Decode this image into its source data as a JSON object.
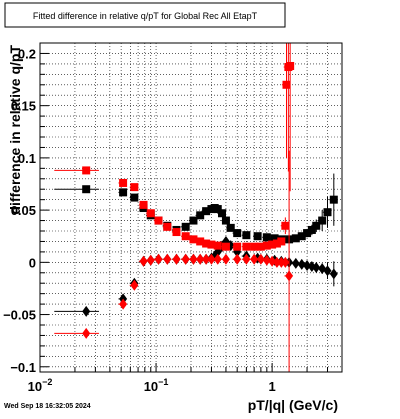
{
  "canvas": {
    "title": "Fitted difference in relative q/pT for Global Rec All EtapT",
    "footer": "Wed Sep 18 16:32:05 2024"
  },
  "chart_data": {
    "type": "scatter",
    "title": "Fitted difference in relative q/pT for Global Rec All EtapT",
    "xlabel": "pT/|q| (GeV/c)",
    "ylabel": "difference in relative q/pT",
    "xscale": "log",
    "xlim": [
      0.01,
      4.0
    ],
    "ylim": [
      -0.105,
      0.21
    ],
    "grid": true,
    "x_ticks": [
      {
        "value": 0.01,
        "base": "10",
        "exp": "−2"
      },
      {
        "value": 0.1,
        "base": "10",
        "exp": "−1"
      },
      {
        "value": 1,
        "base": "1",
        "exp": ""
      }
    ],
    "y_ticks": [
      {
        "value": -0.1,
        "label": "−0.1"
      },
      {
        "value": -0.05,
        "label": "−0.05"
      },
      {
        "value": 0,
        "label": "0"
      },
      {
        "value": 0.05,
        "label": "0.05"
      },
      {
        "value": 0.1,
        "label": "0.1"
      },
      {
        "value": 0.15,
        "label": "0.15"
      },
      {
        "value": 0.2,
        "label": "0.2"
      }
    ],
    "series": [
      {
        "color": "#000000",
        "marker": "square",
        "x": [
          0.025,
          0.052,
          0.065,
          0.078,
          0.09,
          0.105,
          0.125,
          0.15,
          0.18,
          0.21,
          0.24,
          0.27,
          0.3,
          0.32,
          0.34,
          0.37,
          0.4,
          0.44,
          0.5,
          0.6,
          0.75,
          0.9,
          1.05,
          1.2,
          1.4,
          1.6,
          1.8,
          2.0,
          2.2,
          2.4,
          2.7,
          3.0,
          3.4
        ],
        "y": [
          0.07,
          0.067,
          0.062,
          0.052,
          0.045,
          0.04,
          0.035,
          0.031,
          0.034,
          0.04,
          0.045,
          0.049,
          0.051,
          0.052,
          0.051,
          0.047,
          0.04,
          0.033,
          0.028,
          0.026,
          0.025,
          0.024,
          0.023,
          0.022,
          0.022,
          0.023,
          0.025,
          0.028,
          0.031,
          0.035,
          0.04,
          0.048,
          0.06
        ],
        "yerr": [
          0.003,
          0.003,
          0.002,
          0.002,
          0.002,
          0.001,
          0.001,
          0.001,
          0.001,
          0.001,
          0.001,
          0.001,
          0.001,
          0.001,
          0.001,
          0.001,
          0.001,
          0.001,
          0.001,
          0.001,
          0.001,
          0.001,
          0.001,
          0.001,
          0.002,
          0.002,
          0.003,
          0.004,
          0.005,
          0.006,
          0.01,
          0.015,
          0.025
        ]
      },
      {
        "color": "#000000",
        "marker": "diamond",
        "x": [
          0.025,
          0.052,
          0.065,
          0.078,
          0.09,
          0.105,
          0.125,
          0.15,
          0.18,
          0.21,
          0.24,
          0.27,
          0.3,
          0.32,
          0.34,
          0.37,
          0.4,
          0.44,
          0.5,
          0.6,
          0.75,
          0.9,
          1.05,
          1.2,
          1.4,
          1.6,
          1.8,
          2.0,
          2.2,
          2.4,
          2.7,
          3.0,
          3.4
        ],
        "y": [
          -0.047,
          -0.035,
          -0.02,
          0.001,
          0.002,
          0.003,
          0.003,
          0.003,
          0.003,
          0.003,
          0.003,
          0.003,
          0.004,
          0.006,
          0.01,
          0.015,
          0.02,
          0.016,
          0.01,
          0.006,
          0.004,
          0.003,
          0.002,
          0.001,
          0.0,
          -0.001,
          -0.002,
          -0.003,
          -0.004,
          -0.005,
          -0.006,
          -0.008,
          -0.011
        ],
        "yerr": [
          0.002,
          0.002,
          0.002,
          0.001,
          0.001,
          0.001,
          0.001,
          0.001,
          0.001,
          0.001,
          0.001,
          0.001,
          0.001,
          0.001,
          0.001,
          0.001,
          0.001,
          0.001,
          0.001,
          0.001,
          0.001,
          0.001,
          0.001,
          0.001,
          0.001,
          0.001,
          0.001,
          0.002,
          0.002,
          0.003,
          0.005,
          0.008,
          0.012
        ]
      },
      {
        "color": "#ff0000",
        "marker": "square",
        "x": [
          0.025,
          0.052,
          0.065,
          0.078,
          0.09,
          0.105,
          0.125,
          0.15,
          0.18,
          0.21,
          0.24,
          0.27,
          0.3,
          0.34,
          0.4,
          0.5,
          0.6,
          0.7,
          0.8,
          0.9,
          1.0,
          1.1,
          1.2,
          1.3,
          1.33,
          1.38,
          1.43
        ],
        "y": [
          0.088,
          0.076,
          0.072,
          0.055,
          0.047,
          0.04,
          0.034,
          0.029,
          0.025,
          0.022,
          0.02,
          0.018,
          0.017,
          0.016,
          0.015,
          0.015,
          0.015,
          0.015,
          0.015,
          0.016,
          0.017,
          0.018,
          0.02,
          0.035,
          0.17,
          0.187,
          0.188
        ],
        "yerr": [
          0.003,
          0.003,
          0.002,
          0.002,
          0.002,
          0.001,
          0.001,
          0.001,
          0.001,
          0.001,
          0.001,
          0.001,
          0.001,
          0.001,
          0.001,
          0.001,
          0.001,
          0.001,
          0.001,
          0.001,
          0.001,
          0.002,
          0.003,
          0.008,
          0.07,
          0.1,
          0.12
        ]
      },
      {
        "color": "#ff0000",
        "marker": "diamond",
        "x": [
          0.025,
          0.052,
          0.065,
          0.078,
          0.09,
          0.105,
          0.125,
          0.15,
          0.18,
          0.21,
          0.24,
          0.27,
          0.3,
          0.34,
          0.4,
          0.5,
          0.6,
          0.7,
          0.8,
          0.9,
          1.0,
          1.1,
          1.2,
          1.3,
          1.4
        ],
        "y": [
          -0.068,
          -0.04,
          -0.022,
          0.001,
          0.002,
          0.003,
          0.003,
          0.003,
          0.003,
          0.003,
          0.003,
          0.003,
          0.003,
          0.003,
          0.003,
          0.003,
          0.003,
          0.003,
          0.003,
          0.002,
          0.001,
          0.0,
          0.0,
          0.0,
          -0.013
        ],
        "yerr": [
          0.003,
          0.003,
          0.002,
          0.001,
          0.001,
          0.001,
          0.001,
          0.001,
          0.001,
          0.001,
          0.001,
          0.001,
          0.001,
          0.001,
          0.001,
          0.001,
          0.001,
          0.001,
          0.001,
          0.001,
          0.001,
          0.001,
          0.002,
          0.004,
          0.12
        ]
      }
    ]
  }
}
